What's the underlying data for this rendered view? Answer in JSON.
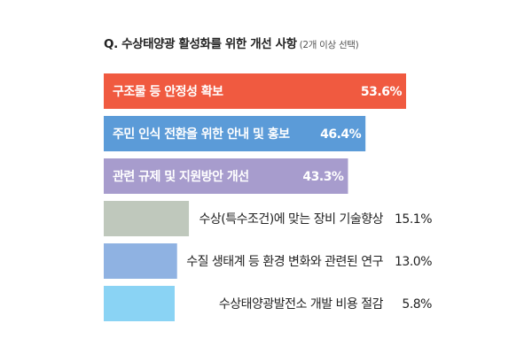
{
  "chart_data": {
    "type": "bar",
    "orientation": "horizontal",
    "title": "Q. 수상태양광 활성화를 위한 개선 사항",
    "subtitle": "(2개 이상 선택)",
    "categories": [
      "구조물 등 안정성 확보",
      "주민 인식 전환을 위한 안내 및 홍보",
      "관련 규제 및 지원방안 개선",
      "수상(특수조건)에 맞는 장비 기술향상",
      "수질 생태계 등 환경 변화와 관련된 연구",
      "수상태양광발전소 개발 비용 절감"
    ],
    "values": [
      53.6,
      46.4,
      43.3,
      15.1,
      13.0,
      5.8
    ],
    "value_labels": [
      "53.6%",
      "46.4%",
      "43.3%",
      "15.1%",
      "13.0%",
      "5.8%"
    ],
    "colors": [
      "#f05a40",
      "#5b9bd8",
      "#a79ccd",
      "#bfc8bc",
      "#8fb2e2",
      "#8ad3f4"
    ],
    "label_inside": [
      true,
      true,
      true,
      false,
      false,
      false
    ],
    "grid": false,
    "legend": "none"
  }
}
